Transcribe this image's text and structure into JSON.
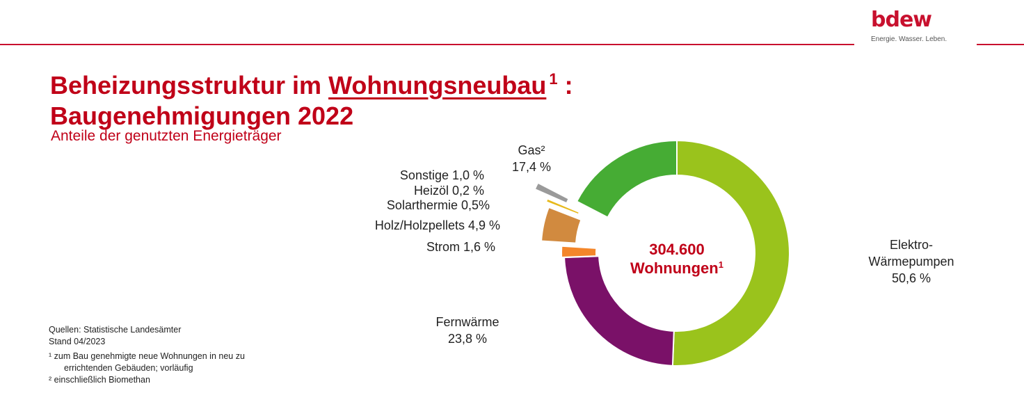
{
  "logo": {
    "word": "bdew",
    "tagline": "Energie. Wasser. Leben."
  },
  "title": {
    "line1_a": "Beheizungsstruktur im ",
    "line1_underlined": "Wohnungsneubau",
    "line1_sup": "1",
    "line1_b": " :",
    "line2": "Baugenehmigungen 2022"
  },
  "subtitle": "Anteile der genutzten Energieträger",
  "chart_data": {
    "type": "pie",
    "variant": "donut",
    "unit": "%",
    "center_label": {
      "line1": "304.600",
      "line2": "Wohnungen",
      "sup": "1"
    },
    "series": [
      {
        "name": "Elektro-Wärmepumpen",
        "value": 50.6,
        "color": "#9ac31c",
        "label_lines": [
          "Elektro-",
          "Wärmepumpen",
          "50,6 %"
        ]
      },
      {
        "name": "Fernwärme",
        "value": 23.8,
        "color": "#7a1168",
        "label_lines": [
          "Fernwärme",
          "23,8 %"
        ]
      },
      {
        "name": "Strom",
        "value": 1.6,
        "color": "#f4862a",
        "label_lines": [
          "Strom 1,6 %"
        ]
      },
      {
        "name": "Holz/Holzpellets",
        "value": 4.9,
        "color": "#d18a3f",
        "label_lines": [
          "Holz/Holzpellets 4,9 %"
        ]
      },
      {
        "name": "Solarthermie",
        "value": 0.5,
        "color": "#e7b91b",
        "label_lines": [
          "Solarthermie 0,5%"
        ]
      },
      {
        "name": "Heizöl",
        "value": 0.2,
        "color": "#5a5a5a",
        "label_lines": [
          "Heizöl 0,2 %"
        ]
      },
      {
        "name": "Sonstige",
        "value": 1.0,
        "color": "#9a9a9a",
        "label_lines": [
          "Sonstige 1,0 %"
        ]
      },
      {
        "name": "Gas",
        "value": 17.4,
        "color": "#46ac34",
        "label_lines": [
          "Gas²",
          "17,4 %"
        ]
      }
    ]
  },
  "footnotes": {
    "source": "Quellen:  Statistische Landesämter",
    "stand": "Stand 04/2023",
    "note1_a": "¹ zum Bau genehmigte neue Wohnungen in neu zu",
    "note1_b": "errichtenden Gebäuden; vorläufig",
    "note2": "² einschließlich Biomethan"
  },
  "colors": {
    "brand_red": "#c8102e",
    "title_red": "#c00018"
  }
}
